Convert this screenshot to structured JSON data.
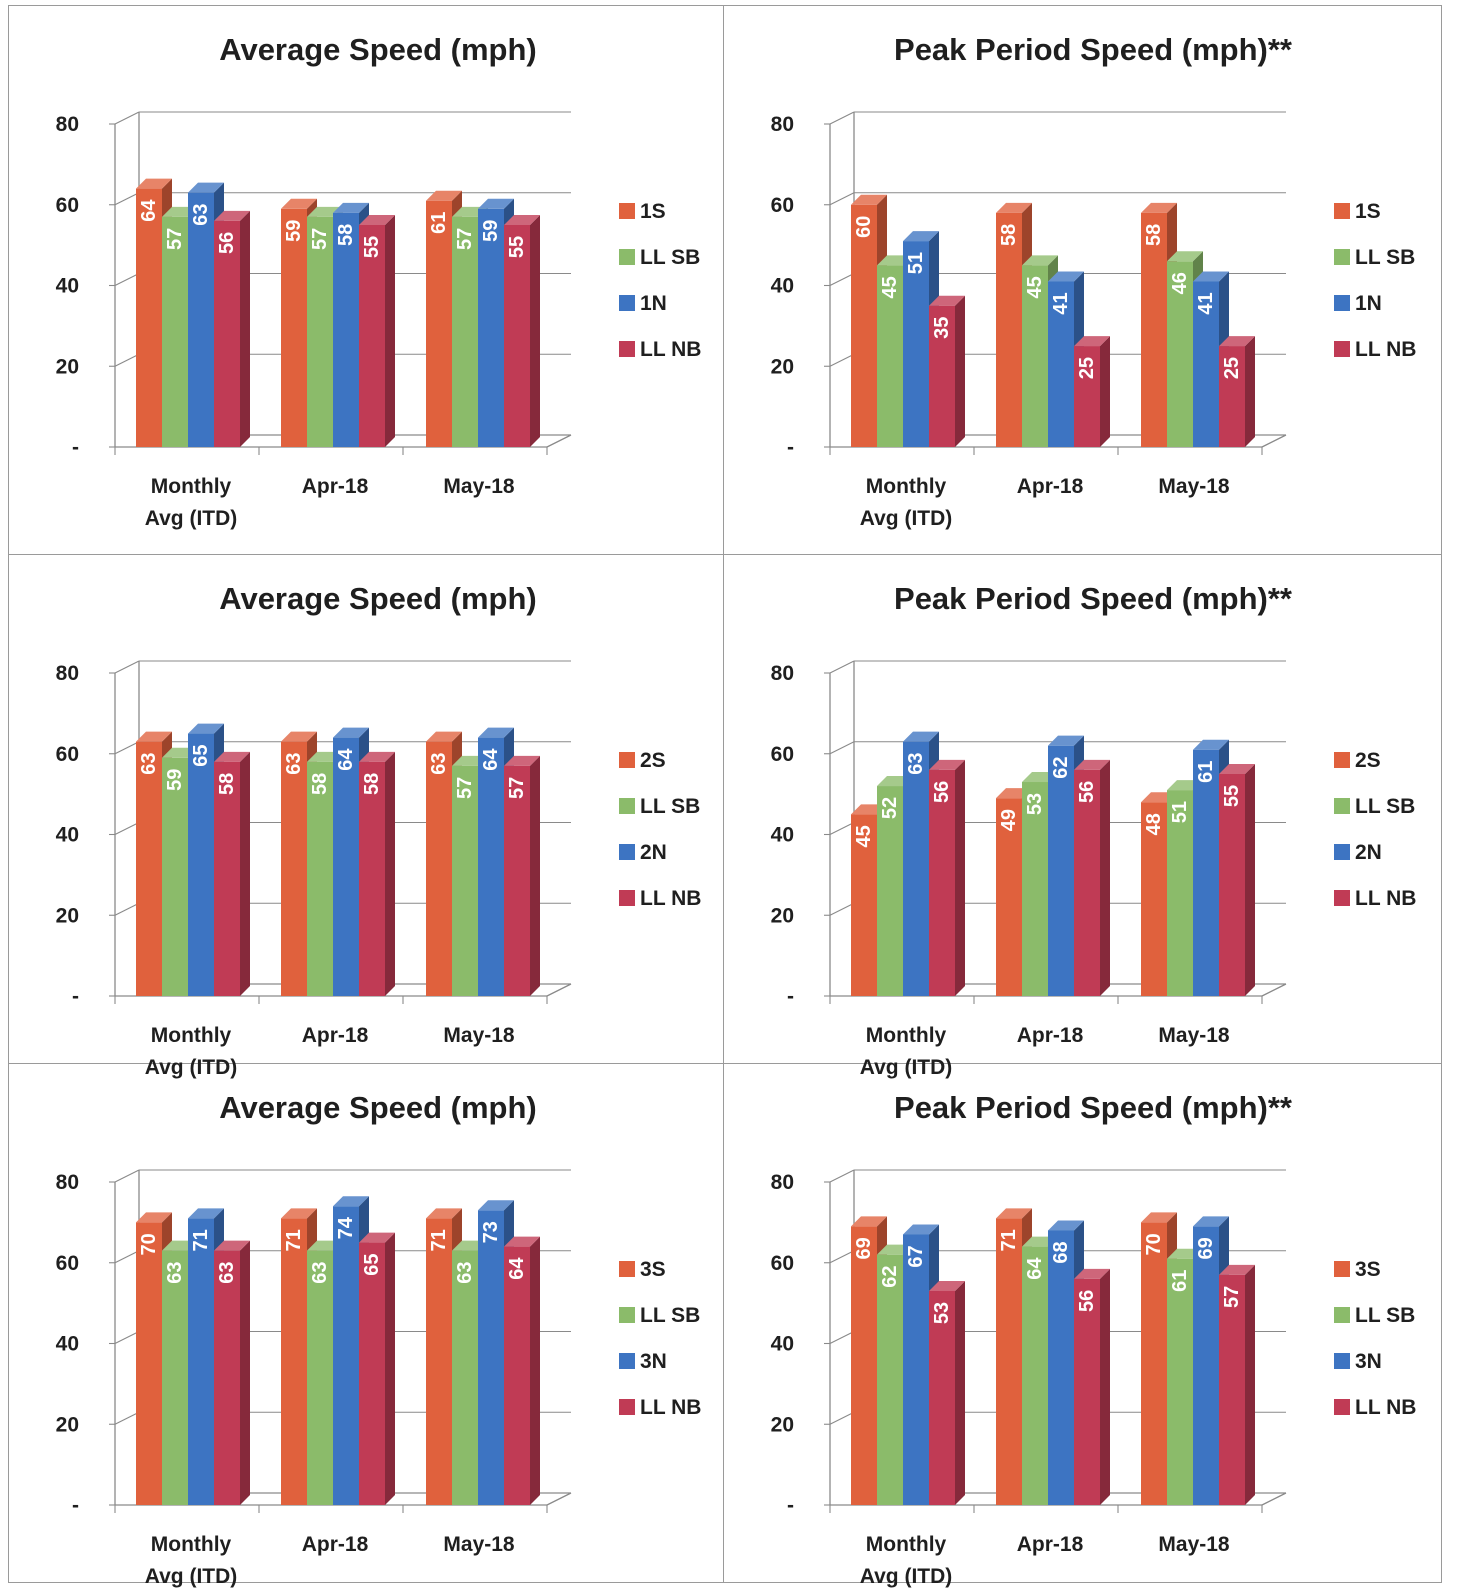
{
  "colors": {
    "series1": "#e0613d",
    "series2": "#8bbb6a",
    "series3": "#3d74c2",
    "series4": "#c03b55"
  },
  "chart_data": [
    {
      "type": "bar",
      "title": "Average Speed (mph)",
      "categories": [
        [
          "Monthly",
          "Avg (ITD)"
        ],
        [
          "Apr-18"
        ],
        [
          "May-18"
        ]
      ],
      "y_ticks": [
        "-",
        "20",
        "40",
        "60",
        "80"
      ],
      "ylim": [
        0,
        80
      ],
      "legend_position": "right",
      "series": [
        {
          "name": "1S",
          "values": [
            64,
            59,
            61
          ]
        },
        {
          "name": "LL SB",
          "values": [
            57,
            57,
            57
          ]
        },
        {
          "name": "1N",
          "values": [
            63,
            58,
            59
          ]
        },
        {
          "name": "LL NB",
          "values": [
            56,
            55,
            55
          ]
        }
      ]
    },
    {
      "type": "bar",
      "title": "Peak Period Speed (mph)**",
      "categories": [
        [
          "Monthly",
          "Avg (ITD)"
        ],
        [
          "Apr-18"
        ],
        [
          "May-18"
        ]
      ],
      "y_ticks": [
        "-",
        "20",
        "40",
        "60",
        "80"
      ],
      "ylim": [
        0,
        80
      ],
      "legend_position": "right",
      "series": [
        {
          "name": "1S",
          "values": [
            60,
            58,
            58
          ]
        },
        {
          "name": "LL SB",
          "values": [
            45,
            45,
            46
          ]
        },
        {
          "name": "1N",
          "values": [
            51,
            41,
            41
          ]
        },
        {
          "name": "LL NB",
          "values": [
            35,
            25,
            25
          ]
        }
      ]
    },
    {
      "type": "bar",
      "title": "Average Speed (mph)",
      "categories": [
        [
          "Monthly",
          "Avg (ITD)"
        ],
        [
          "Apr-18"
        ],
        [
          "May-18"
        ]
      ],
      "y_ticks": [
        "-",
        "20",
        "40",
        "60",
        "80"
      ],
      "ylim": [
        0,
        80
      ],
      "legend_position": "right",
      "series": [
        {
          "name": "2S",
          "values": [
            63,
            63,
            63
          ]
        },
        {
          "name": "LL SB",
          "values": [
            59,
            58,
            57
          ]
        },
        {
          "name": "2N",
          "values": [
            65,
            64,
            64
          ]
        },
        {
          "name": "LL NB",
          "values": [
            58,
            58,
            57
          ]
        }
      ]
    },
    {
      "type": "bar",
      "title": "Peak Period Speed (mph)**",
      "categories": [
        [
          "Monthly",
          "Avg (ITD)"
        ],
        [
          "Apr-18"
        ],
        [
          "May-18"
        ]
      ],
      "y_ticks": [
        "-",
        "20",
        "40",
        "60",
        "80"
      ],
      "ylim": [
        0,
        80
      ],
      "legend_position": "right",
      "series": [
        {
          "name": "2S",
          "values": [
            45,
            49,
            48
          ]
        },
        {
          "name": "LL SB",
          "values": [
            52,
            53,
            51
          ]
        },
        {
          "name": "2N",
          "values": [
            63,
            62,
            61
          ]
        },
        {
          "name": "LL NB",
          "values": [
            56,
            56,
            55
          ]
        }
      ]
    },
    {
      "type": "bar",
      "title": "Average Speed (mph)",
      "categories": [
        [
          "Monthly",
          "Avg (ITD)"
        ],
        [
          "Apr-18"
        ],
        [
          "May-18"
        ]
      ],
      "y_ticks": [
        "-",
        "20",
        "40",
        "60",
        "80"
      ],
      "ylim": [
        0,
        80
      ],
      "legend_position": "right",
      "series": [
        {
          "name": "3S",
          "values": [
            70,
            71,
            71
          ]
        },
        {
          "name": "LL SB",
          "values": [
            63,
            63,
            63
          ]
        },
        {
          "name": "3N",
          "values": [
            71,
            74,
            73
          ]
        },
        {
          "name": "LL NB",
          "values": [
            63,
            65,
            64
          ]
        }
      ]
    },
    {
      "type": "bar",
      "title": "Peak Period Speed (mph)**",
      "categories": [
        [
          "Monthly",
          "Avg (ITD)"
        ],
        [
          "Apr-18"
        ],
        [
          "May-18"
        ]
      ],
      "y_ticks": [
        "-",
        "20",
        "40",
        "60",
        "80"
      ],
      "ylim": [
        0,
        80
      ],
      "legend_position": "right",
      "series": [
        {
          "name": "3S",
          "values": [
            69,
            71,
            70
          ]
        },
        {
          "name": "LL SB",
          "values": [
            62,
            64,
            61
          ]
        },
        {
          "name": "3N",
          "values": [
            67,
            68,
            69
          ]
        },
        {
          "name": "LL NB",
          "values": [
            53,
            56,
            57
          ]
        }
      ]
    }
  ]
}
